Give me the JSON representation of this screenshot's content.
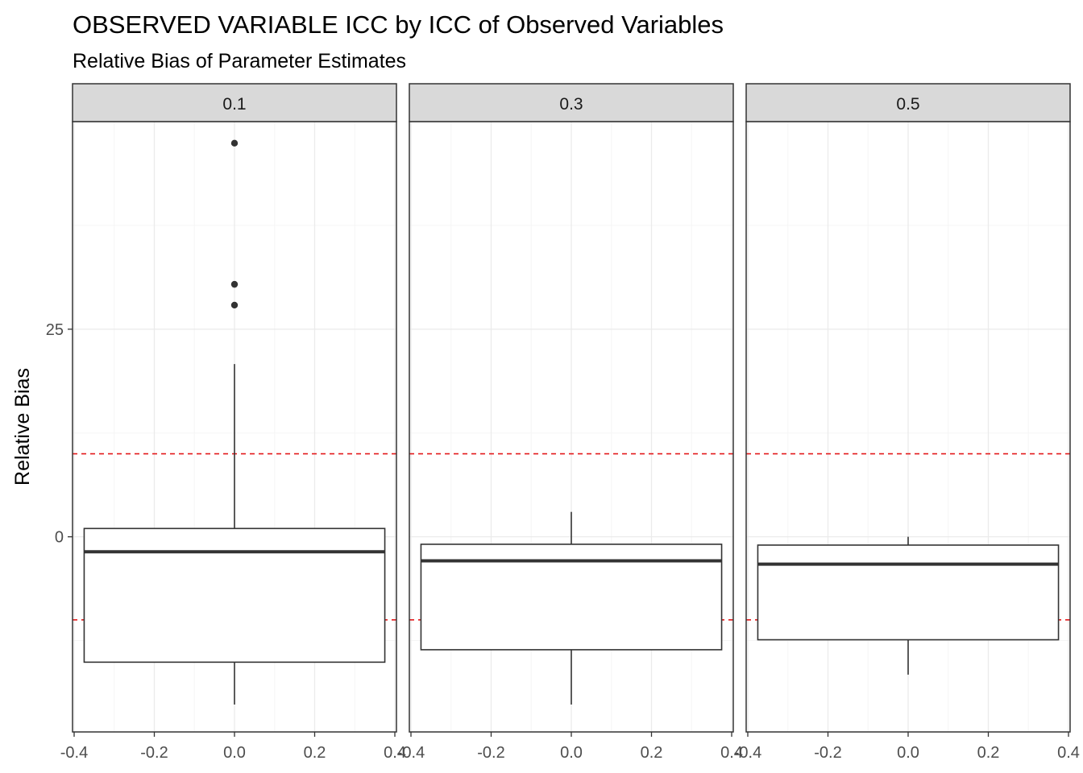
{
  "chart_data": {
    "type": "boxplot",
    "title": "OBSERVED VARIABLE ICC by ICC of Observed Variables",
    "subtitle": "Relative Bias of Parameter Estimates",
    "xlabel": "",
    "ylabel": "Relative Bias",
    "xlim": [
      -0.4,
      0.4
    ],
    "ylim": [
      -23.5,
      50
    ],
    "x_ticks": [
      "-0.4",
      "-0.2",
      "0.0",
      "0.2",
      "0.4"
    ],
    "x_tick_values": [
      -0.4,
      -0.2,
      0.0,
      0.2,
      0.4
    ],
    "y_ticks": [
      "0",
      "25"
    ],
    "y_tick_values": [
      0,
      25
    ],
    "grid": true,
    "reference_lines": {
      "values": [
        10,
        -10
      ],
      "color": "#e31a1c",
      "style": "dashed"
    },
    "panels": [
      {
        "label": "0.1",
        "box": {
          "x": 0.0,
          "width": 0.75,
          "whisker_low": -20.2,
          "q1": -15.1,
          "median": -1.8,
          "q3": 1.0,
          "whisker_high": 20.8
        },
        "outliers": [
          47.4,
          30.4,
          27.9
        ]
      },
      {
        "label": "0.3",
        "box": {
          "x": 0.0,
          "width": 0.75,
          "whisker_low": -20.2,
          "q1": -13.6,
          "median": -2.9,
          "q3": -0.9,
          "whisker_high": 3.0
        },
        "outliers": []
      },
      {
        "label": "0.5",
        "box": {
          "x": 0.0,
          "width": 0.75,
          "whisker_low": -16.6,
          "q1": -12.4,
          "median": -3.3,
          "q3": -1.0,
          "whisker_high": 0.0
        },
        "outliers": []
      }
    ],
    "colors": {
      "panel_border": "#333333",
      "strip_fill": "#d9d9d9",
      "grid_major": "#ebebeb",
      "grid_minor": "#f5f5f5",
      "box_line": "#333333",
      "tick_text": "#4d4d4d"
    }
  }
}
